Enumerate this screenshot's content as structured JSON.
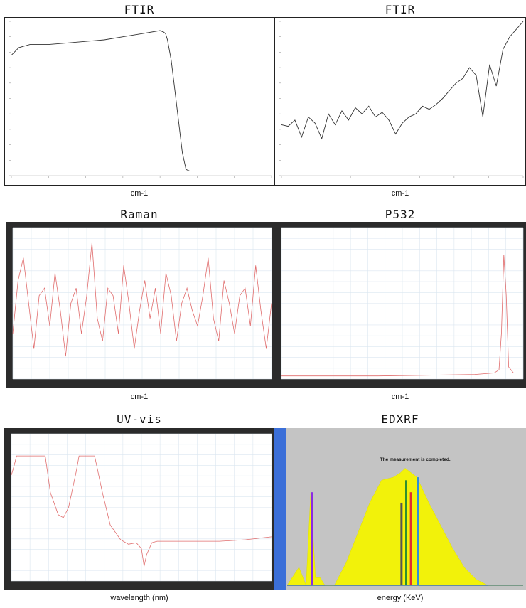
{
  "panels": [
    {
      "id": "ftir1",
      "title": "FTIR",
      "xlabel": "cm-1",
      "style": "white",
      "curve_color": "#333333"
    },
    {
      "id": "ftir2",
      "title": "FTIR",
      "xlabel": "cm-1",
      "style": "white",
      "curve_color": "#333333"
    },
    {
      "id": "raman",
      "title": "Raman",
      "xlabel": "cm-1",
      "style": "dark",
      "curve_color": "#e06c6c"
    },
    {
      "id": "p532",
      "title": "P532",
      "xlabel": "cm-1",
      "style": "dark",
      "curve_color": "#e06c6c"
    },
    {
      "id": "uvvis",
      "title": "UV-vis",
      "xlabel": "wavelength (nm)",
      "style": "dark",
      "curve_color": "#e06c6c"
    },
    {
      "id": "edxrf",
      "title": "EDXRF",
      "xlabel": "energy (KeV)",
      "style": "edxrf",
      "annotation": "The measurement is completed."
    }
  ],
  "chart_data": [
    {
      "type": "line",
      "title": "FTIR",
      "xlabel": "cm-1",
      "xlim": [
        7000,
        0
      ],
      "ylim": [
        0,
        1
      ],
      "x": [
        7000,
        6800,
        6500,
        6000,
        5500,
        5000,
        4500,
        4000,
        3500,
        3000,
        2900,
        2850,
        2800,
        2700,
        2600,
        2500,
        2400,
        2300,
        2200,
        2000,
        1500,
        1000,
        500,
        0
      ],
      "y": [
        0.78,
        0.83,
        0.85,
        0.85,
        0.86,
        0.87,
        0.88,
        0.9,
        0.92,
        0.94,
        0.93,
        0.92,
        0.88,
        0.75,
        0.55,
        0.35,
        0.15,
        0.04,
        0.03,
        0.03,
        0.03,
        0.03,
        0.03,
        0.03
      ]
    },
    {
      "type": "line",
      "title": "FTIR",
      "xlabel": "cm-1",
      "xlim": [
        4000,
        400
      ],
      "ylim": [
        0,
        1
      ],
      "x": [
        4000,
        3900,
        3800,
        3700,
        3600,
        3500,
        3400,
        3300,
        3200,
        3100,
        3000,
        2900,
        2800,
        2700,
        2600,
        2500,
        2400,
        2300,
        2200,
        2100,
        2000,
        1900,
        1800,
        1700,
        1600,
        1500,
        1400,
        1300,
        1200,
        1100,
        1000,
        900,
        800,
        700,
        600,
        500,
        400
      ],
      "y": [
        0.33,
        0.32,
        0.36,
        0.25,
        0.38,
        0.34,
        0.24,
        0.4,
        0.33,
        0.42,
        0.36,
        0.44,
        0.4,
        0.45,
        0.38,
        0.41,
        0.36,
        0.27,
        0.34,
        0.38,
        0.4,
        0.45,
        0.43,
        0.46,
        0.5,
        0.55,
        0.6,
        0.63,
        0.7,
        0.65,
        0.38,
        0.72,
        0.58,
        0.82,
        0.9,
        0.95,
        1.0
      ]
    },
    {
      "type": "line",
      "title": "Raman",
      "xlabel": "cm-1",
      "xlim": [
        0,
        1
      ],
      "ylim": [
        0,
        1
      ],
      "y": [
        0.3,
        0.65,
        0.8,
        0.5,
        0.2,
        0.55,
        0.6,
        0.35,
        0.7,
        0.45,
        0.15,
        0.5,
        0.6,
        0.3,
        0.55,
        0.9,
        0.4,
        0.25,
        0.6,
        0.55,
        0.3,
        0.75,
        0.5,
        0.2,
        0.45,
        0.65,
        0.4,
        0.6,
        0.3,
        0.7,
        0.55,
        0.25,
        0.5,
        0.6,
        0.45,
        0.35,
        0.55,
        0.8,
        0.4,
        0.25,
        0.65,
        0.5,
        0.3,
        0.55,
        0.6,
        0.35,
        0.75,
        0.45,
        0.2,
        0.5
      ]
    },
    {
      "type": "line",
      "title": "P532",
      "xlabel": "cm-1",
      "xlim": [
        0,
        1
      ],
      "ylim": [
        0,
        1
      ],
      "x": [
        0,
        0.2,
        0.4,
        0.6,
        0.8,
        0.88,
        0.9,
        0.91,
        0.92,
        0.93,
        0.94,
        0.96,
        1.0
      ],
      "y": [
        0.02,
        0.02,
        0.02,
        0.025,
        0.03,
        0.04,
        0.06,
        0.3,
        0.82,
        0.55,
        0.08,
        0.04,
        0.04
      ]
    },
    {
      "type": "line",
      "title": "UV-vis",
      "xlabel": "wavelength (nm)",
      "xlim": [
        0,
        1
      ],
      "ylim": [
        0,
        1
      ],
      "x": [
        0,
        0.01,
        0.02,
        0.05,
        0.1,
        0.13,
        0.15,
        0.18,
        0.2,
        0.22,
        0.25,
        0.26,
        0.28,
        0.3,
        0.32,
        0.35,
        0.38,
        0.42,
        0.45,
        0.48,
        0.5,
        0.51,
        0.52,
        0.53,
        0.54,
        0.56,
        0.6,
        0.7,
        0.8,
        0.9,
        1.0
      ],
      "y": [
        0.72,
        0.78,
        0.85,
        0.85,
        0.85,
        0.85,
        0.6,
        0.45,
        0.43,
        0.5,
        0.75,
        0.85,
        0.85,
        0.85,
        0.85,
        0.6,
        0.38,
        0.28,
        0.25,
        0.26,
        0.22,
        0.1,
        0.18,
        0.22,
        0.26,
        0.27,
        0.27,
        0.27,
        0.27,
        0.28,
        0.3
      ]
    },
    {
      "type": "area",
      "title": "EDXRF",
      "xlabel": "energy (KeV)",
      "xlim": [
        0,
        1
      ],
      "ylim": [
        0,
        1
      ],
      "x": [
        0,
        0.05,
        0.08,
        0.1,
        0.12,
        0.14,
        0.16,
        0.2,
        0.25,
        0.3,
        0.35,
        0.4,
        0.45,
        0.48,
        0.5,
        0.55,
        0.6,
        0.65,
        0.7,
        0.75,
        0.8,
        0.85,
        1.0
      ],
      "y": [
        0.0,
        0.12,
        0.0,
        0.62,
        0.05,
        0.05,
        0.0,
        0.0,
        0.15,
        0.35,
        0.55,
        0.7,
        0.72,
        0.75,
        0.78,
        0.72,
        0.55,
        0.4,
        0.25,
        0.12,
        0.04,
        0.0,
        0.0
      ]
    }
  ]
}
